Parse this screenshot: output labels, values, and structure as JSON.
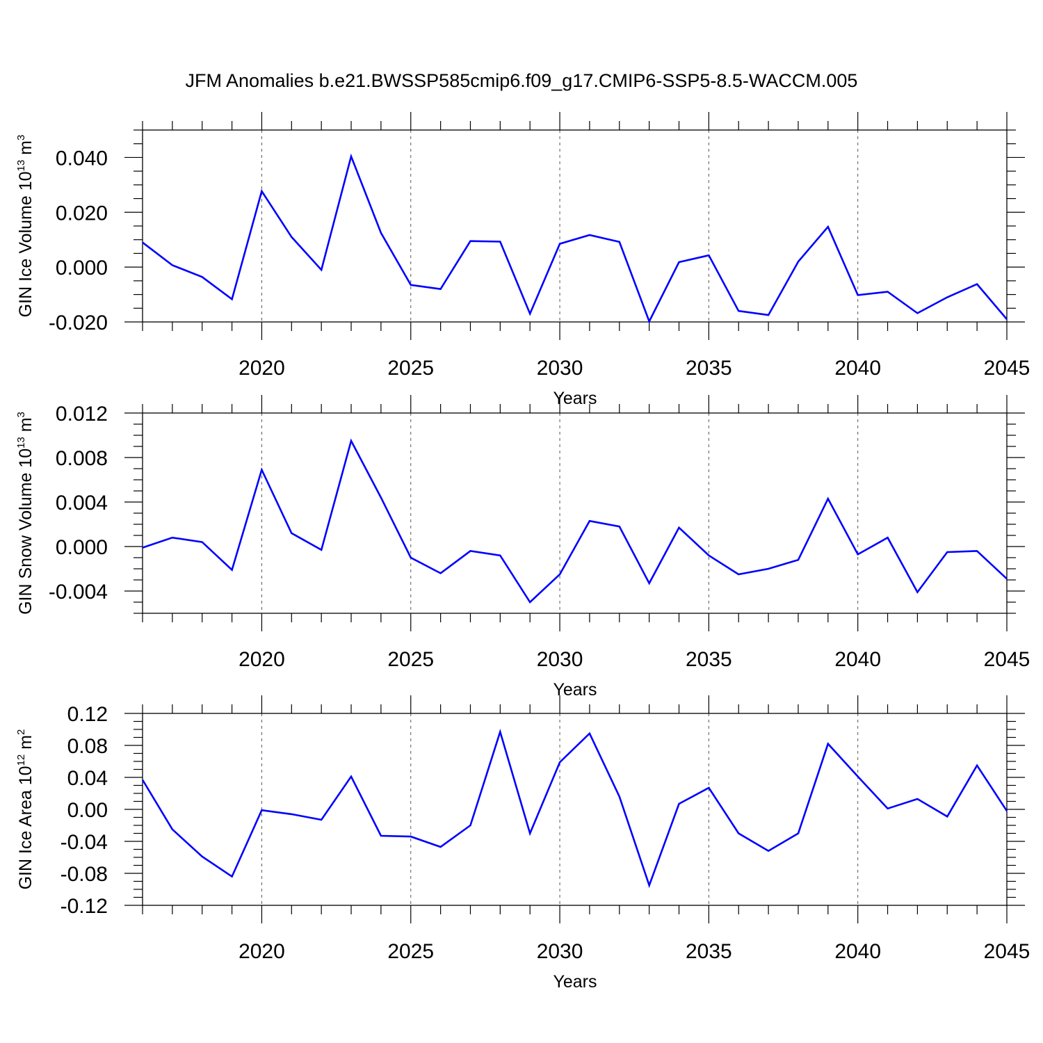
{
  "figure_title": "JFM Anomalies b.e21.BWSSP585cmip6.f09_g17.CMIP6-SSP5-8.5-WACCM.005",
  "colors": {
    "line": "#0000ff",
    "axes": "#000000",
    "grid": "#555555"
  },
  "chart_data": [
    {
      "type": "line",
      "ylabel": {
        "text": "GIN Ice Volume 10",
        "sup": "13",
        "unit": " m",
        "unit_sup": "3"
      },
      "xlabel": "Years",
      "xlim": [
        2016,
        2045
      ],
      "xticks": [
        "2020",
        "2025",
        "2030",
        "2035",
        "2040",
        "2045"
      ],
      "ylim": [
        -0.02,
        0.05
      ],
      "yticks": [
        "0.040",
        "0.020",
        "0.000",
        "-0.020"
      ],
      "grid": "vertical-dashed",
      "x": [
        2016,
        2017,
        2018,
        2019,
        2020,
        2021,
        2022,
        2023,
        2024,
        2025,
        2026,
        2027,
        2028,
        2029,
        2030,
        2031,
        2032,
        2033,
        2034,
        2035,
        2036,
        2037,
        2038,
        2039,
        2040,
        2041,
        2042,
        2043,
        2044,
        2045
      ],
      "series": [
        {
          "values": [
            0.009,
            0.0007,
            -0.0036,
            -0.0117,
            0.0277,
            0.011,
            -0.001,
            0.0404,
            0.0125,
            -0.0065,
            -0.008,
            0.0095,
            0.0093,
            -0.017,
            0.0085,
            0.0117,
            0.0092,
            -0.0198,
            0.0018,
            0.0043,
            -0.016,
            -0.0175,
            0.002,
            0.0147,
            -0.0102,
            -0.009,
            -0.0168,
            -0.011,
            -0.0062,
            -0.019
          ]
        }
      ]
    },
    {
      "type": "line",
      "ylabel": {
        "text": "GIN Snow Volume 10",
        "sup": "13",
        "unit": " m",
        "unit_sup": "3"
      },
      "xlabel": "Years",
      "xlim": [
        2016,
        2045
      ],
      "xticks": [
        "2020",
        "2025",
        "2030",
        "2035",
        "2040",
        "2045"
      ],
      "ylim": [
        -0.006,
        0.012
      ],
      "yticks": [
        "0.012",
        "0.008",
        "0.004",
        "0.000",
        "-0.004"
      ],
      "grid": "vertical-dashed",
      "x": [
        2016,
        2017,
        2018,
        2019,
        2020,
        2021,
        2022,
        2023,
        2024,
        2025,
        2026,
        2027,
        2028,
        2029,
        2030,
        2031,
        2032,
        2033,
        2034,
        2035,
        2036,
        2037,
        2038,
        2039,
        2040,
        2041,
        2042,
        2043,
        2044,
        2045
      ],
      "series": [
        {
          "values": [
            -0.0001,
            0.0008,
            0.0004,
            -0.0021,
            0.0069,
            0.0012,
            -0.0003,
            0.0095,
            0.0044,
            -0.001,
            -0.0024,
            -0.0004,
            -0.0008,
            -0.005,
            -0.0025,
            0.0023,
            0.0018,
            -0.0033,
            0.0017,
            -0.0008,
            -0.0025,
            -0.002,
            -0.0012,
            0.0043,
            -0.0007,
            0.0008,
            -0.0041,
            -0.0005,
            -0.0004,
            -0.0029
          ]
        }
      ]
    },
    {
      "type": "line",
      "ylabel": {
        "text": "GIN Ice Area 10",
        "sup": "12",
        "unit": " m",
        "unit_sup": "2"
      },
      "xlabel": "Years",
      "xlim": [
        2016,
        2045
      ],
      "xticks": [
        "2020",
        "2025",
        "2030",
        "2035",
        "2040",
        "2045"
      ],
      "ylim": [
        -0.12,
        0.12
      ],
      "yticks": [
        "0.12",
        "0.08",
        "0.04",
        "0.00",
        "-0.04",
        "-0.08",
        "-0.12"
      ],
      "grid": "vertical-dashed",
      "x": [
        2016,
        2017,
        2018,
        2019,
        2020,
        2021,
        2022,
        2023,
        2024,
        2025,
        2026,
        2027,
        2028,
        2029,
        2030,
        2031,
        2032,
        2033,
        2034,
        2035,
        2036,
        2037,
        2038,
        2039,
        2040,
        2041,
        2042,
        2043,
        2044,
        2045
      ],
      "series": [
        {
          "values": [
            0.037,
            -0.025,
            -0.059,
            -0.084,
            -0.001,
            -0.006,
            -0.013,
            0.041,
            -0.033,
            -0.034,
            -0.047,
            -0.02,
            0.097,
            -0.03,
            0.059,
            0.095,
            0.016,
            -0.095,
            0.007,
            0.027,
            -0.03,
            -0.052,
            -0.03,
            0.082,
            0.041,
            0.001,
            0.013,
            -0.009,
            0.055,
            -0.002
          ]
        }
      ]
    }
  ]
}
